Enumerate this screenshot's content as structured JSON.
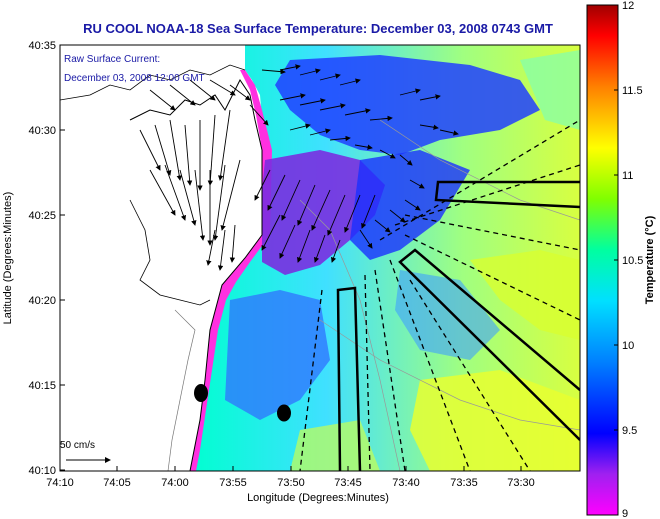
{
  "title": "RU COOL  NOAA-18  Sea Surface Temperature:  December 03, 2008 0743 GMT",
  "annotation": {
    "line1": "Raw Surface Current:",
    "line2": "December 03, 2008 12:00 GMT"
  },
  "axes": {
    "xlabel": "Longitude (Degrees:Minutes)",
    "ylabel": "Latitude (Degrees:Minutes)",
    "x_ticks": [
      "74:10",
      "74:05",
      "74:00",
      "73:55",
      "73:50",
      "73:45",
      "73:40",
      "73:35",
      "73:30"
    ],
    "y_ticks": [
      "40:35",
      "40:30",
      "40:25",
      "40:20",
      "40:15",
      "40:10"
    ]
  },
  "scale_bar": {
    "label": "50 cm/s"
  },
  "colorbar": {
    "label": "Temperature (°C)",
    "ticks": [
      "12",
      "11.5",
      "11",
      "10.5",
      "10",
      "9.5",
      "9"
    ],
    "min": 9,
    "max": 12,
    "colors": [
      "#ff00ff",
      "#8a2be2",
      "#0000ff",
      "#00a0ff",
      "#00ffff",
      "#00ff80",
      "#ffff00",
      "#ff8000",
      "#ff0000",
      "#a00000"
    ]
  },
  "colors": {
    "land": "#ffffff",
    "title": "#1a1aa6",
    "warm_water": "#ffff00",
    "cool_water": "#0000ff",
    "cold_water": "#ff00ff"
  }
}
